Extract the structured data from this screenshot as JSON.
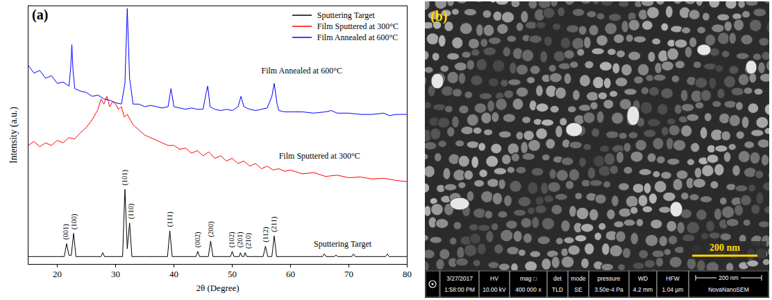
{
  "chart_data": {
    "type": "line",
    "panel_label": "(a)",
    "x_label": "2θ (Degree)",
    "y_label": "Intensity (a.u.)",
    "xlim": [
      15,
      80
    ],
    "xticks": [
      20,
      30,
      40,
      50,
      60,
      70,
      80
    ],
    "ylim": [
      0,
      100
    ],
    "tick_labels": "x",
    "legend": "top-right",
    "series": [
      {
        "name": "Sputtering Target",
        "color": "#000000",
        "x": [
          15,
          18,
          20,
          21.2,
          21.6,
          22.0,
          22.4,
          22.8,
          23.2,
          25,
          27.5,
          27.8,
          28.1,
          30,
          31.2,
          31.6,
          32.0,
          32.4,
          32.8,
          35,
          38.9,
          39.3,
          39.7,
          43.8,
          44.1,
          44.4,
          45.9,
          46.3,
          46.7,
          49.7,
          50.0,
          50.3,
          51.2,
          51.4,
          51.7,
          52.0,
          52.2,
          52.5,
          55.3,
          55.7,
          56.1,
          56.8,
          57.2,
          57.6,
          60,
          65.5,
          65.8,
          66.1,
          67.5,
          67.8,
          68.1,
          70.5,
          70.8,
          71.1,
          76.3,
          76.6,
          76.9,
          80
        ],
        "values": [
          3,
          3,
          3,
          3,
          8,
          3.5,
          3.5,
          12,
          3,
          3,
          3,
          4.5,
          3,
          3,
          3,
          29,
          6,
          16,
          3,
          3,
          3,
          13,
          3,
          3,
          5,
          3,
          3,
          9,
          3,
          3,
          5,
          3,
          3,
          4.5,
          3,
          3,
          4.5,
          3,
          3,
          7,
          3,
          3,
          11,
          3,
          3,
          3,
          4,
          3,
          3,
          3.6,
          3,
          3,
          4,
          3,
          3,
          4,
          3,
          3
        ]
      },
      {
        "name": "Film Sputtered at 300°C",
        "color": "#ff0000",
        "x": [
          15,
          16,
          17,
          18,
          19,
          20,
          21,
          22,
          23,
          24,
          25,
          26,
          27,
          27.5,
          28,
          28.5,
          29,
          29.5,
          30,
          30.5,
          31,
          31.5,
          32,
          33,
          34,
          35,
          36,
          37,
          38,
          39,
          40,
          41,
          42,
          43,
          44,
          45,
          46,
          47,
          48,
          49,
          50,
          51,
          52,
          53,
          54,
          55,
          56,
          57,
          58,
          59,
          60,
          62,
          64,
          66,
          68,
          70,
          72,
          74,
          76,
          78,
          80
        ],
        "values": [
          46,
          47.5,
          45.5,
          47,
          46,
          48,
          47,
          49,
          48.5,
          51,
          53,
          56,
          60,
          64,
          62,
          65,
          61,
          63,
          62,
          60,
          61,
          57,
          58,
          54,
          52,
          50,
          49,
          48,
          47,
          46,
          46,
          44.5,
          45,
          43,
          44,
          42,
          43.5,
          41,
          42,
          40,
          41,
          39,
          40,
          38,
          39,
          37,
          38,
          36.5,
          37,
          36,
          36.5,
          35,
          35.5,
          34,
          34.5,
          33.5,
          33.8,
          33,
          33.3,
          32.5,
          32
        ]
      },
      {
        "name": "Film Annealed at 600°C",
        "color": "#0000ff",
        "x": [
          15,
          16,
          17,
          18,
          19,
          20,
          21,
          22,
          22.3,
          22.5,
          22.7,
          23,
          24,
          25,
          26,
          27,
          28,
          29,
          30,
          31,
          31.6,
          32,
          32.4,
          33,
          34,
          35,
          36,
          37,
          38,
          39,
          39.5,
          40,
          41,
          42,
          43,
          44,
          45,
          45.5,
          45.8,
          46.2,
          47,
          48,
          49,
          50,
          51,
          51.5,
          52,
          53,
          54,
          55,
          56,
          56.8,
          57.2,
          57.7,
          58,
          59,
          60,
          62,
          64,
          66,
          67,
          68,
          70,
          72,
          74,
          76,
          77,
          78,
          80
        ],
        "values": [
          77,
          74,
          75,
          72,
          73,
          70,
          70.5,
          69,
          76,
          85,
          75,
          68,
          67,
          66.5,
          65,
          65.5,
          64,
          63.5,
          62.5,
          62,
          70,
          99,
          72,
          62,
          62,
          61,
          61.5,
          61,
          60.5,
          61,
          68,
          61,
          60.5,
          60,
          60.5,
          60,
          60,
          66,
          69,
          61,
          60,
          59.5,
          60,
          59.5,
          61,
          65,
          61,
          60,
          59.5,
          60,
          60.5,
          65,
          70,
          62,
          59.5,
          59,
          59,
          59,
          58.5,
          59,
          59.5,
          58.5,
          58.5,
          58,
          58,
          58.5,
          57.5,
          58,
          58
        ]
      }
    ],
    "peak_labels": [
      {
        "text": "(001)",
        "x": 21.4,
        "y": 9.5
      },
      {
        "text": "(100)",
        "x": 22.9,
        "y": 13.5
      },
      {
        "text": "(101)",
        "x": 31.6,
        "y": 30.5
      },
      {
        "text": "(110)",
        "x": 32.6,
        "y": 17.5
      },
      {
        "text": "(111)",
        "x": 39.3,
        "y": 14.5
      },
      {
        "text": "(002)",
        "x": 44.1,
        "y": 6.5
      },
      {
        "text": "(200)",
        "x": 46.3,
        "y": 10.5
      },
      {
        "text": "(102)",
        "x": 49.9,
        "y": 6.5
      },
      {
        "text": "(201)",
        "x": 51.3,
        "y": 6.5
      },
      {
        "text": "(210)",
        "x": 52.7,
        "y": 6
      },
      {
        "text": "(112)",
        "x": 55.7,
        "y": 8.5
      },
      {
        "text": "(211)",
        "x": 57.2,
        "y": 12.5
      }
    ],
    "annotations": [
      {
        "text": "Film Annealed at 600°C",
        "x": 55,
        "y": 75
      },
      {
        "text": "Film Sputtered at 300°C",
        "x": 58,
        "y": 42
      },
      {
        "text": "Sputtering Target",
        "x": 64,
        "y": 8
      }
    ]
  },
  "image_panel": {
    "type": "image",
    "panel_label": "(b)",
    "scale_bar": "200 nm",
    "info_bar": {
      "date": "3/27/2017",
      "time": "1:58:00 PM",
      "fields": [
        {
          "name": "HV",
          "value": "10.00 kV"
        },
        {
          "name": "mag □",
          "value": "400 000 x"
        },
        {
          "name": "det",
          "value": "TLD"
        },
        {
          "name": "mode",
          "value": "SE"
        },
        {
          "name": "pressure",
          "value": "3.50e-4 Pa"
        },
        {
          "name": "WD",
          "value": "4.2 mm"
        },
        {
          "name": "HFW",
          "value": "1.04 µm"
        }
      ],
      "scale_bar": "200 nm",
      "instrument": "NovaNanoSEM"
    }
  }
}
